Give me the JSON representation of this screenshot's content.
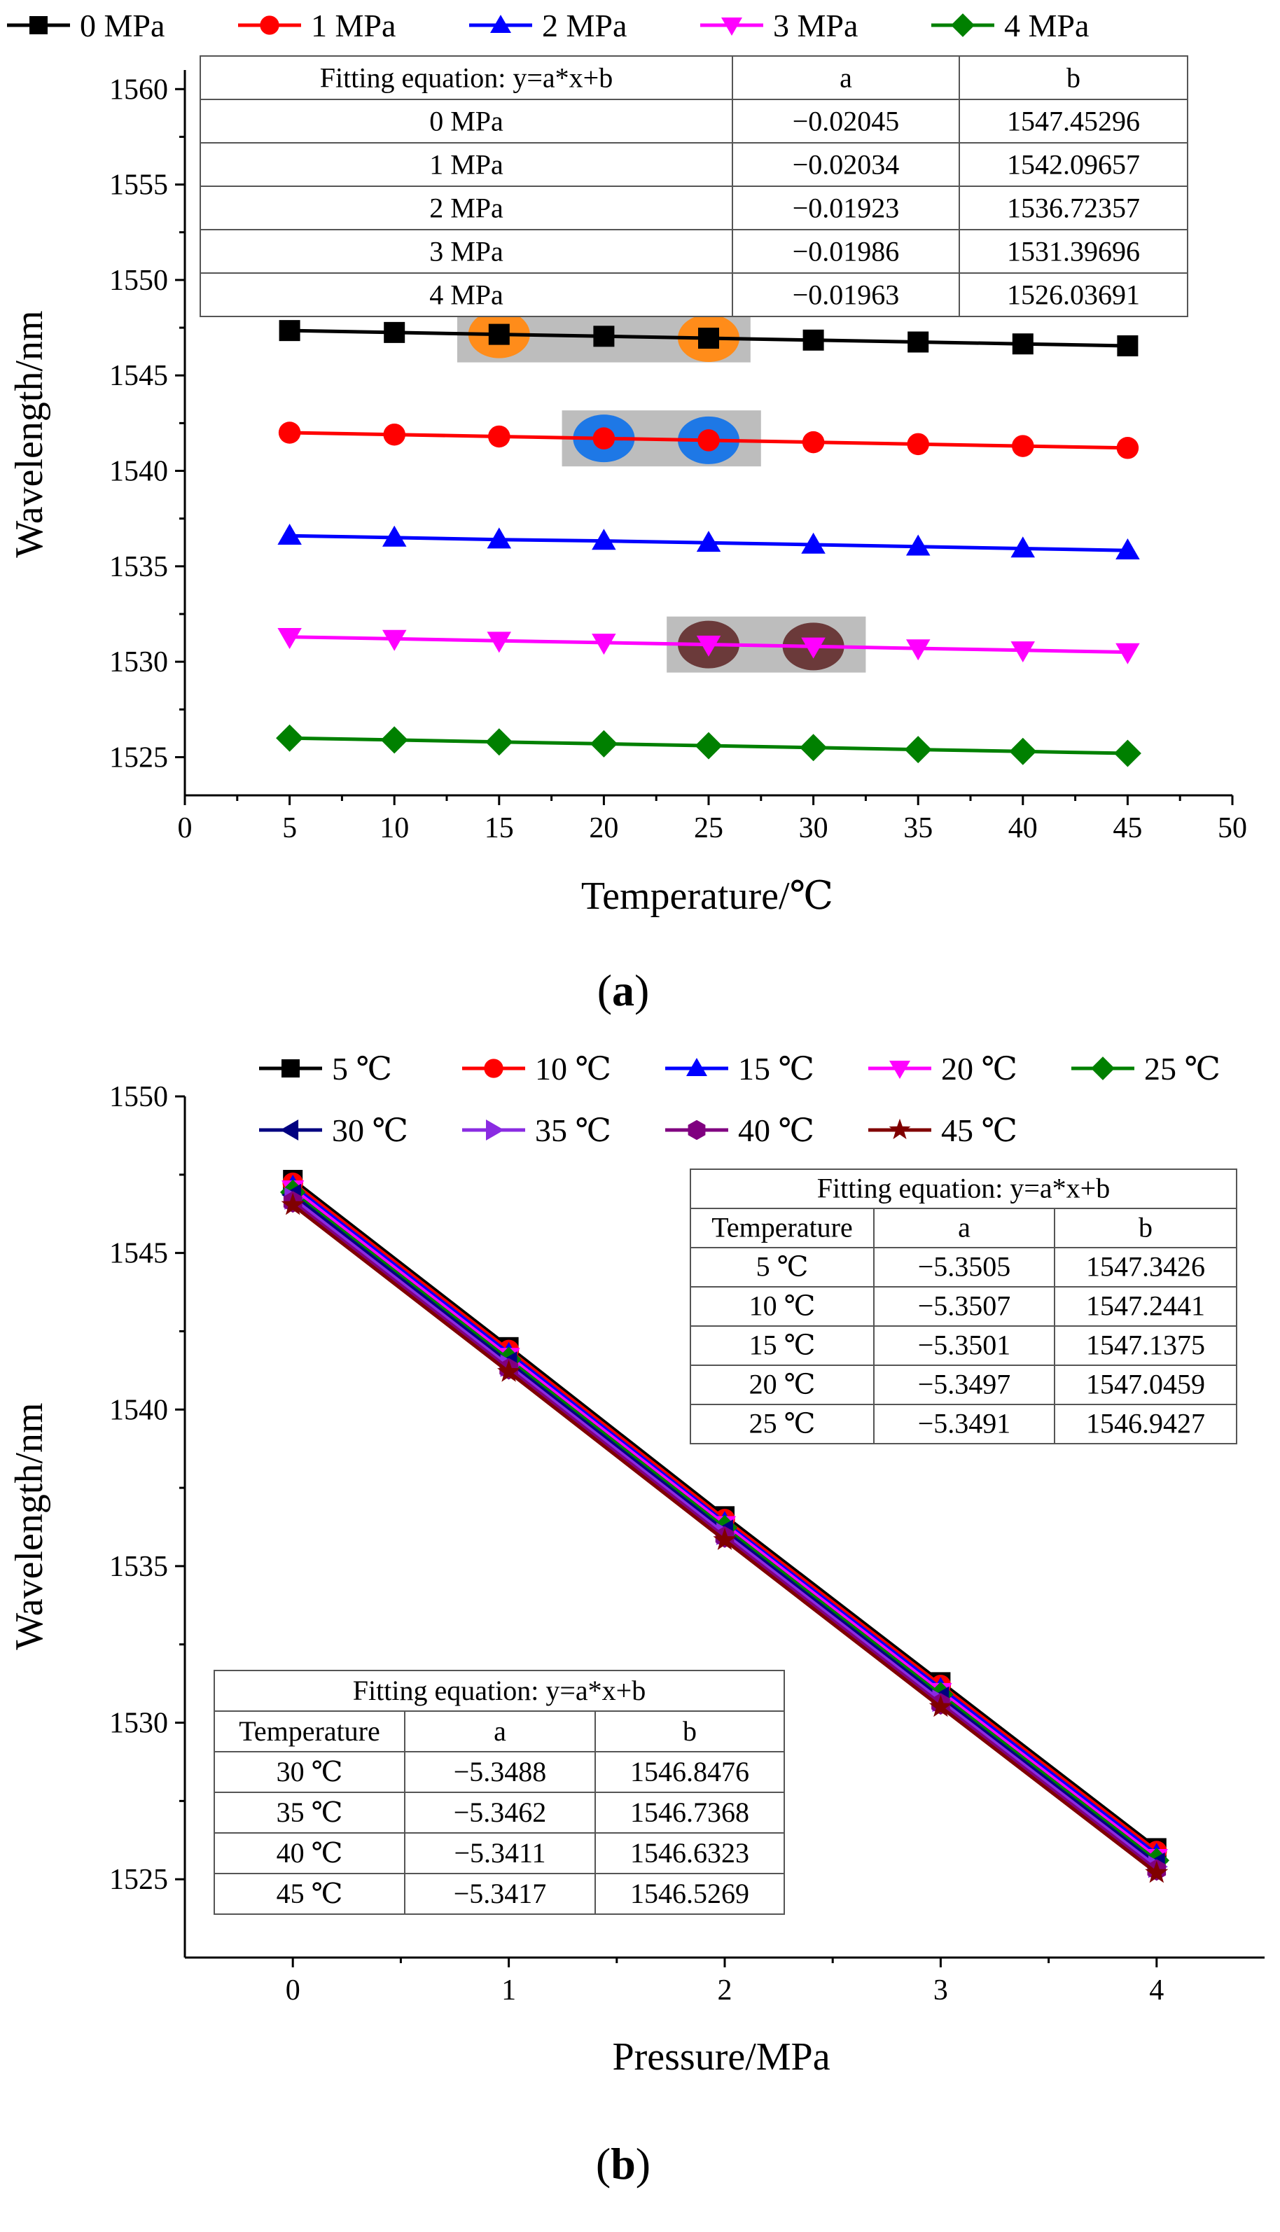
{
  "chart_data": [
    {
      "panel": "(a)",
      "panel_letter": "a",
      "type": "line",
      "xlabel": "Temperature/℃",
      "ylabel": "Wavelength/nm",
      "xlim": [
        0,
        50
      ],
      "ylim": [
        1523,
        1561
      ],
      "xticks": [
        0,
        5,
        10,
        15,
        20,
        25,
        30,
        35,
        40,
        45,
        50
      ],
      "yticks": [
        1525,
        1530,
        1535,
        1540,
        1545,
        1550,
        1555,
        1560
      ],
      "x": [
        5,
        10,
        15,
        20,
        25,
        30,
        35,
        40,
        45
      ],
      "legend_position": "top",
      "series": [
        {
          "name": "0 MPa",
          "color": "#000000",
          "marker": "square",
          "values": [
            1547.35,
            1547.25,
            1547.15,
            1547.05,
            1546.95,
            1546.85,
            1546.75,
            1546.65,
            1546.55
          ]
        },
        {
          "name": "1 MPa",
          "color": "#ff0000",
          "marker": "circle",
          "values": [
            1542.0,
            1541.9,
            1541.8,
            1541.7,
            1541.6,
            1541.5,
            1541.4,
            1541.3,
            1541.2
          ]
        },
        {
          "name": "2 MPa",
          "color": "#0000ff",
          "marker": "triangle-up",
          "values": [
            1536.6,
            1536.5,
            1536.4,
            1536.33,
            1536.23,
            1536.13,
            1536.03,
            1535.93,
            1535.83
          ]
        },
        {
          "name": "3 MPa",
          "color": "#ff00ff",
          "marker": "triangle-down",
          "values": [
            1531.3,
            1531.2,
            1531.1,
            1531.0,
            1530.9,
            1530.8,
            1530.7,
            1530.6,
            1530.5
          ]
        },
        {
          "name": "4 MPa",
          "color": "#008000",
          "marker": "diamond",
          "values": [
            1526.0,
            1525.9,
            1525.8,
            1525.7,
            1525.6,
            1525.5,
            1525.4,
            1525.3,
            1525.2
          ]
        }
      ],
      "highlights": [
        {
          "series": "0 MPa",
          "x": [
            15,
            25
          ],
          "color": "#ff8c1a",
          "box_x": [
            13,
            27
          ]
        },
        {
          "series": "1 MPa",
          "x": [
            20,
            25
          ],
          "color": "#1e78e6",
          "box_x": [
            18,
            27.5
          ]
        },
        {
          "series": "3 MPa",
          "x": [
            25,
            30
          ],
          "color": "#6b3a3a",
          "box_x": [
            23,
            32.5
          ]
        }
      ],
      "table": {
        "header": [
          "Fitting equation: y=a*x+b",
          "a",
          "b"
        ],
        "rows": [
          [
            "0 MPa",
            "−0.02045",
            "1547.45296"
          ],
          [
            "1 MPa",
            "−0.02034",
            "1542.09657"
          ],
          [
            "2 MPa",
            "−0.01923",
            "1536.72357"
          ],
          [
            "3 MPa",
            "−0.01986",
            "1531.39696"
          ],
          [
            "4 MPa",
            "−0.01963",
            "1526.03691"
          ]
        ]
      }
    },
    {
      "panel": "(b)",
      "panel_letter": "b",
      "type": "line",
      "xlabel": "Pressure/MPa",
      "ylabel": "Wavelength/nm",
      "xlim": [
        -0.5,
        4.5
      ],
      "ylim": [
        1522.5,
        1550
      ],
      "xticks": [
        0,
        1,
        2,
        3,
        4
      ],
      "yticks": [
        1525,
        1530,
        1535,
        1540,
        1545,
        1550
      ],
      "x": [
        0,
        1,
        2,
        3,
        4
      ],
      "legend_position": "top",
      "series": [
        {
          "name": "5 ℃",
          "color": "#000000",
          "marker": "square",
          "values": [
            1547.34,
            1542.0,
            1536.6,
            1531.3,
            1526.0
          ]
        },
        {
          "name": "10 ℃",
          "color": "#ff0000",
          "marker": "circle",
          "values": [
            1547.24,
            1541.9,
            1536.5,
            1531.2,
            1525.9
          ]
        },
        {
          "name": "15 ℃",
          "color": "#0000ff",
          "marker": "triangle-up",
          "values": [
            1547.14,
            1541.8,
            1536.4,
            1531.1,
            1525.8
          ]
        },
        {
          "name": "20 ℃",
          "color": "#ff00ff",
          "marker": "triangle-down",
          "values": [
            1547.05,
            1541.7,
            1536.33,
            1531.0,
            1525.7
          ]
        },
        {
          "name": "25 ℃",
          "color": "#008000",
          "marker": "diamond",
          "values": [
            1546.94,
            1541.6,
            1536.23,
            1530.9,
            1525.6
          ]
        },
        {
          "name": "30 ℃",
          "color": "#000080",
          "marker": "triangle-left",
          "values": [
            1546.85,
            1541.5,
            1536.13,
            1530.8,
            1525.5
          ]
        },
        {
          "name": "35 ℃",
          "color": "#8a2be2",
          "marker": "triangle-right",
          "values": [
            1546.74,
            1541.4,
            1536.03,
            1530.7,
            1525.4
          ]
        },
        {
          "name": "40 ℃",
          "color": "#800080",
          "marker": "hexagon",
          "values": [
            1546.63,
            1541.3,
            1535.93,
            1530.6,
            1525.3
          ]
        },
        {
          "name": "45 ℃",
          "color": "#800000",
          "marker": "star",
          "values": [
            1546.53,
            1541.2,
            1535.83,
            1530.5,
            1525.2
          ]
        }
      ],
      "table_top": {
        "title": "Fitting equation: y=a*x+b",
        "header": [
          "Temperature",
          "a",
          "b"
        ],
        "rows": [
          [
            "5 ℃",
            "−5.3505",
            "1547.3426"
          ],
          [
            "10 ℃",
            "−5.3507",
            "1547.2441"
          ],
          [
            "15 ℃",
            "−5.3501",
            "1547.1375"
          ],
          [
            "20 ℃",
            "−5.3497",
            "1547.0459"
          ],
          [
            "25 ℃",
            "−5.3491",
            "1546.9427"
          ]
        ]
      },
      "table_bottom": {
        "title": "Fitting equation: y=a*x+b",
        "header": [
          "Temperature",
          "a",
          "b"
        ],
        "rows": [
          [
            "30 ℃",
            "−5.3488",
            "1546.8476"
          ],
          [
            "35 ℃",
            "−5.3462",
            "1546.7368"
          ],
          [
            "40 ℃",
            "−5.3411",
            "1546.6323"
          ],
          [
            "45 ℃",
            "−5.3417",
            "1546.5269"
          ]
        ]
      }
    }
  ]
}
